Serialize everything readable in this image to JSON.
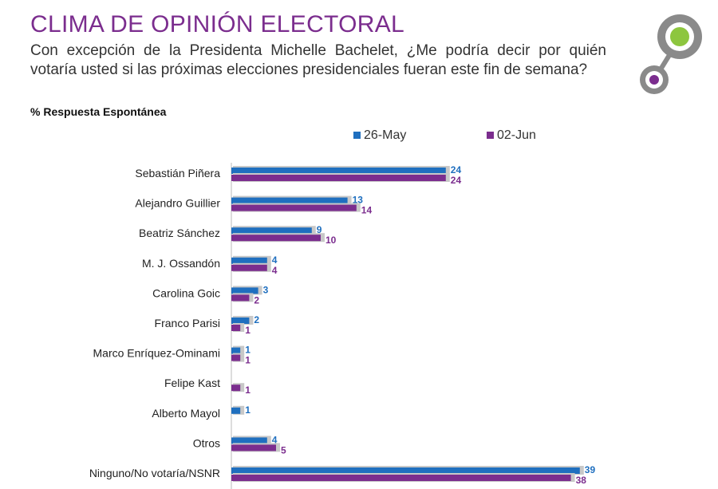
{
  "header": {
    "title": "CLIMA DE OPINIÓN ELECTORAL",
    "question": "Con excepción de la Presidenta Michelle Bachelet, ¿Me podría decir por quién votaría usted si las próximas elecciones presidenciales fueran este fin de semana?",
    "subtitle": "% Respuesta Espontánea"
  },
  "logo": {
    "icon": "circles-logo-icon",
    "colors": [
      "#8dc63f",
      "#7b2d8e",
      "#8a8a8a"
    ]
  },
  "colors": {
    "series_1": "#1f6fbf",
    "series_2": "#7b2d8e",
    "shadow": "#c8c8c8",
    "title": "#7b2d8e"
  },
  "chart_data": {
    "type": "bar",
    "orientation": "horizontal",
    "title": "",
    "xlabel": "",
    "ylabel": "",
    "xlim": [
      0,
      40
    ],
    "grid": false,
    "legend_position": "top",
    "categories": [
      "Sebastián Piñera",
      "Alejandro  Guillier",
      "Beatriz Sánchez",
      "M. J. Ossandón",
      "Carolina Goic",
      "Franco Parisi",
      "Marco Enríquez-Ominami",
      "Felipe Kast",
      "Alberto Mayol",
      "Otros",
      "Ninguno/No votaría/NSNR"
    ],
    "series": [
      {
        "name": "26-May",
        "color": "#1f6fbf",
        "values": [
          24,
          13,
          9,
          4,
          3,
          2,
          1,
          null,
          1,
          4,
          39
        ],
        "labels": [
          "24",
          "13",
          "9",
          "4",
          "3",
          "2",
          "1",
          "",
          "1",
          "4",
          "39"
        ]
      },
      {
        "name": "02-Jun",
        "color": "#7b2d8e",
        "values": [
          24,
          14,
          10,
          4,
          2,
          1,
          1,
          1,
          null,
          5,
          38
        ],
        "labels": [
          "24",
          "14",
          "10",
          "4",
          "2",
          "1",
          "1",
          "1",
          "",
          "5",
          "38"
        ]
      }
    ]
  }
}
